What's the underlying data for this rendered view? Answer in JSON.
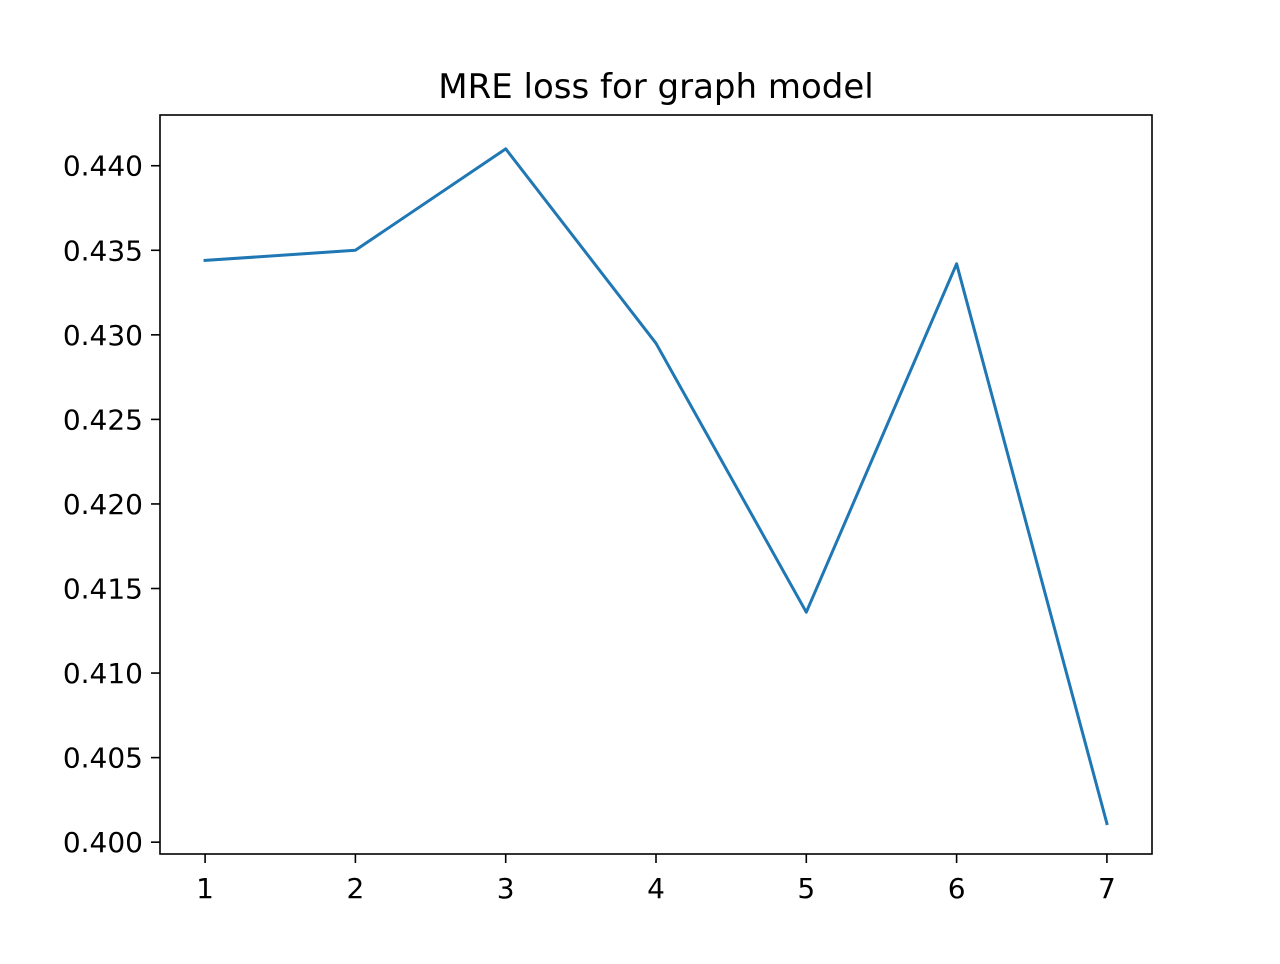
{
  "chart_data": {
    "type": "line",
    "title": "MRE loss for graph model",
    "xlabel": "",
    "ylabel": "",
    "x": [
      1,
      2,
      3,
      4,
      5,
      6,
      7
    ],
    "series": [
      {
        "values": [
          0.4344,
          0.435,
          0.441,
          0.4295,
          0.4136,
          0.4342,
          0.4011
        ],
        "color": "#1f77b4"
      }
    ],
    "xlim": [
      0.7,
      7.3
    ],
    "ylim": [
      0.3993,
      0.443
    ],
    "xticks": [
      1,
      2,
      3,
      4,
      5,
      6,
      7
    ],
    "yticks": [
      0.4,
      0.405,
      0.41,
      0.415,
      0.42,
      0.425,
      0.43,
      0.435,
      0.44
    ],
    "xtick_labels": [
      "1",
      "2",
      "3",
      "4",
      "5",
      "6",
      "7"
    ],
    "ytick_labels": [
      "0.400",
      "0.405",
      "0.410",
      "0.415",
      "0.420",
      "0.425",
      "0.430",
      "0.435",
      "0.440"
    ],
    "grid": false,
    "legend": "none"
  }
}
